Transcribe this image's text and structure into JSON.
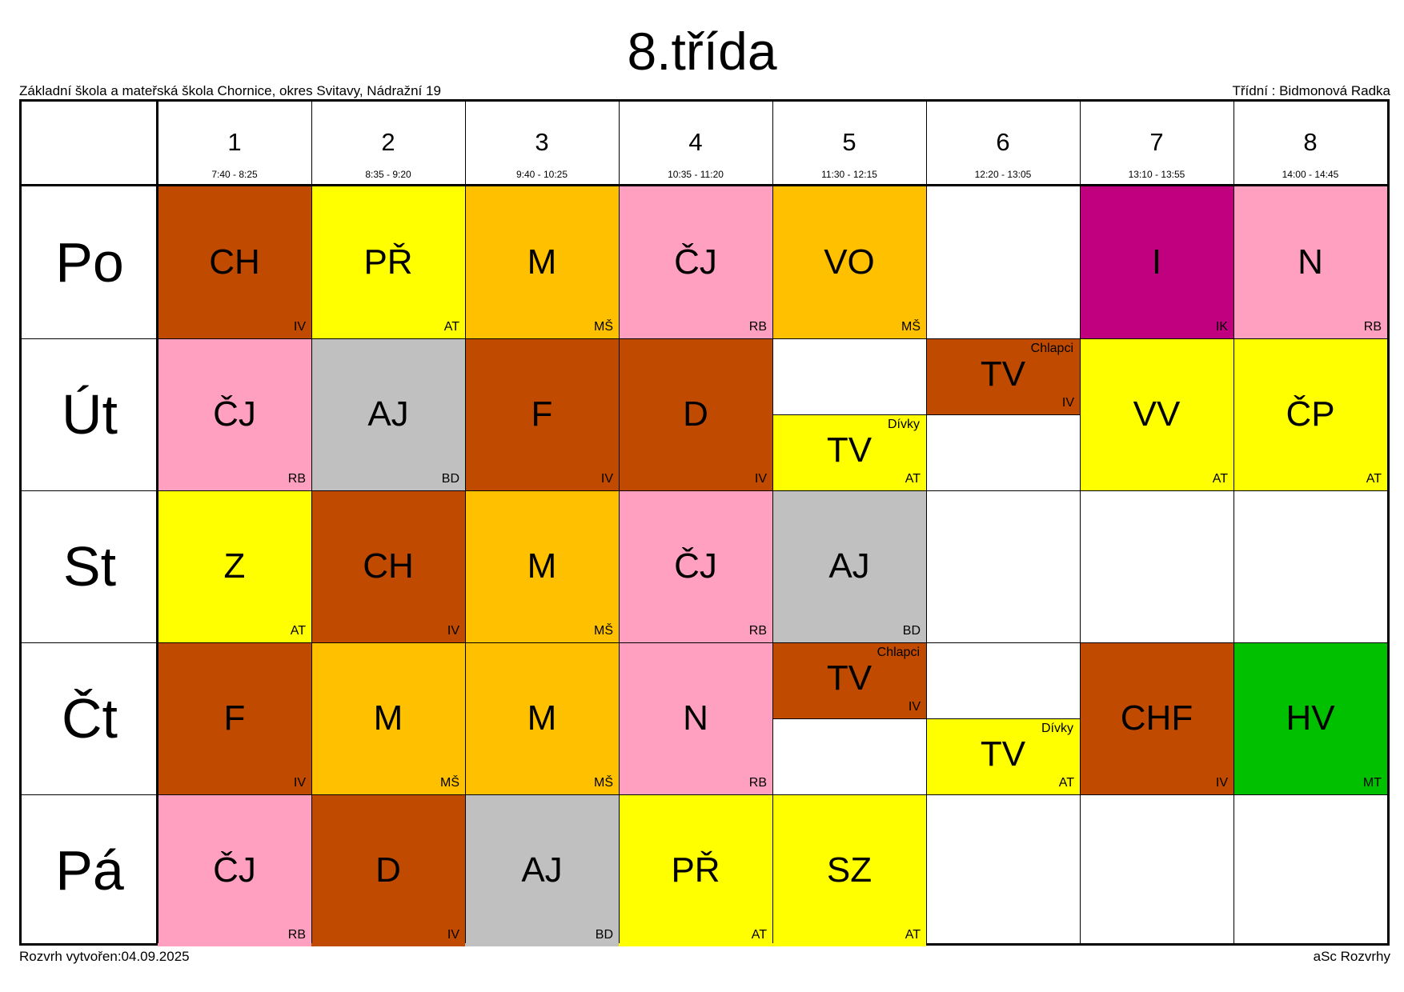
{
  "title": "8.třída",
  "school": "Základní škola a mateřská škola Chornice, okres Svitavy, Nádražní 19",
  "teacher": "Třídní : Bidmonová Radka",
  "created": "Rozvrh vytvořen:04.09.2025",
  "software": "aSc Rozvrhy",
  "colors": {
    "brown": "#C04A00",
    "yellow": "#FFFF00",
    "orange": "#FFC000",
    "pink": "#FFA0C0",
    "gray": "#C0C0C0",
    "magenta": "#C0007F",
    "green": "#00C000",
    "white": "#FFFFFF"
  },
  "periods": [
    {
      "num": "1",
      "time": "7:40 - 8:25"
    },
    {
      "num": "2",
      "time": "8:35 - 9:20"
    },
    {
      "num": "3",
      "time": "9:40 - 10:25"
    },
    {
      "num": "4",
      "time": "10:35 - 11:20"
    },
    {
      "num": "5",
      "time": "11:30 - 12:15"
    },
    {
      "num": "6",
      "time": "12:20 - 13:05"
    },
    {
      "num": "7",
      "time": "13:10 - 13:55"
    },
    {
      "num": "8",
      "time": "14:00 - 14:45"
    }
  ],
  "days": [
    "Po",
    "Út",
    "St",
    "Čt",
    "Pá"
  ],
  "lessons": [
    {
      "day": 0,
      "period": 0,
      "part": "full",
      "subject": "CH",
      "teacher": "IV",
      "color": "brown"
    },
    {
      "day": 0,
      "period": 1,
      "part": "full",
      "subject": "PŘ",
      "teacher": "AT",
      "color": "yellow"
    },
    {
      "day": 0,
      "period": 2,
      "part": "full",
      "subject": "M",
      "teacher": "MŠ",
      "color": "orange"
    },
    {
      "day": 0,
      "period": 3,
      "part": "full",
      "subject": "ČJ",
      "teacher": "RB",
      "color": "pink"
    },
    {
      "day": 0,
      "period": 4,
      "part": "full",
      "subject": "VO",
      "teacher": "MŠ",
      "color": "orange"
    },
    {
      "day": 0,
      "period": 6,
      "part": "full",
      "subject": "I",
      "teacher": "IK",
      "color": "magenta"
    },
    {
      "day": 0,
      "period": 7,
      "part": "full",
      "subject": "N",
      "teacher": "RB",
      "color": "pink"
    },
    {
      "day": 1,
      "period": 0,
      "part": "full",
      "subject": "ČJ",
      "teacher": "RB",
      "color": "pink"
    },
    {
      "day": 1,
      "period": 1,
      "part": "full",
      "subject": "AJ",
      "teacher": "BD",
      "color": "gray"
    },
    {
      "day": 1,
      "period": 2,
      "part": "full",
      "subject": "F",
      "teacher": "IV",
      "color": "brown"
    },
    {
      "day": 1,
      "period": 3,
      "part": "full",
      "subject": "D",
      "teacher": "IV",
      "color": "brown"
    },
    {
      "day": 1,
      "period": 4,
      "part": "bottom",
      "subject": "TV",
      "teacher": "AT",
      "group": "Dívky",
      "color": "yellow"
    },
    {
      "day": 1,
      "period": 5,
      "part": "top",
      "subject": "TV",
      "teacher": "IV",
      "group": "Chlapci",
      "color": "brown"
    },
    {
      "day": 1,
      "period": 6,
      "part": "full",
      "subject": "VV",
      "teacher": "AT",
      "color": "yellow"
    },
    {
      "day": 1,
      "period": 7,
      "part": "full",
      "subject": "ČP",
      "teacher": "AT",
      "color": "yellow"
    },
    {
      "day": 2,
      "period": 0,
      "part": "full",
      "subject": "Z",
      "teacher": "AT",
      "color": "yellow"
    },
    {
      "day": 2,
      "period": 1,
      "part": "full",
      "subject": "CH",
      "teacher": "IV",
      "color": "brown"
    },
    {
      "day": 2,
      "period": 2,
      "part": "full",
      "subject": "M",
      "teacher": "MŠ",
      "color": "orange"
    },
    {
      "day": 2,
      "period": 3,
      "part": "full",
      "subject": "ČJ",
      "teacher": "RB",
      "color": "pink"
    },
    {
      "day": 2,
      "period": 4,
      "part": "full",
      "subject": "AJ",
      "teacher": "BD",
      "color": "gray"
    },
    {
      "day": 3,
      "period": 0,
      "part": "full",
      "subject": "F",
      "teacher": "IV",
      "color": "brown"
    },
    {
      "day": 3,
      "period": 1,
      "part": "full",
      "subject": "M",
      "teacher": "MŠ",
      "color": "orange"
    },
    {
      "day": 3,
      "period": 2,
      "part": "full",
      "subject": "M",
      "teacher": "MŠ",
      "color": "orange"
    },
    {
      "day": 3,
      "period": 3,
      "part": "full",
      "subject": "N",
      "teacher": "RB",
      "color": "pink"
    },
    {
      "day": 3,
      "period": 4,
      "part": "top",
      "subject": "TV",
      "teacher": "IV",
      "group": "Chlapci",
      "color": "brown"
    },
    {
      "day": 3,
      "period": 5,
      "part": "bottom",
      "subject": "TV",
      "teacher": "AT",
      "group": "Dívky",
      "color": "yellow"
    },
    {
      "day": 3,
      "period": 6,
      "part": "full",
      "subject": "CHF",
      "teacher": "IV",
      "color": "brown"
    },
    {
      "day": 3,
      "period": 7,
      "part": "full",
      "subject": "HV",
      "teacher": "MT",
      "color": "green"
    },
    {
      "day": 4,
      "period": 0,
      "part": "full",
      "subject": "ČJ",
      "teacher": "RB",
      "color": "pink"
    },
    {
      "day": 4,
      "period": 1,
      "part": "full",
      "subject": "D",
      "teacher": "IV",
      "color": "brown"
    },
    {
      "day": 4,
      "period": 2,
      "part": "full",
      "subject": "AJ",
      "teacher": "BD",
      "color": "gray"
    },
    {
      "day": 4,
      "period": 3,
      "part": "full",
      "subject": "PŘ",
      "teacher": "AT",
      "color": "yellow"
    },
    {
      "day": 4,
      "period": 4,
      "part": "full",
      "subject": "SZ",
      "teacher": "AT",
      "color": "yellow"
    }
  ]
}
